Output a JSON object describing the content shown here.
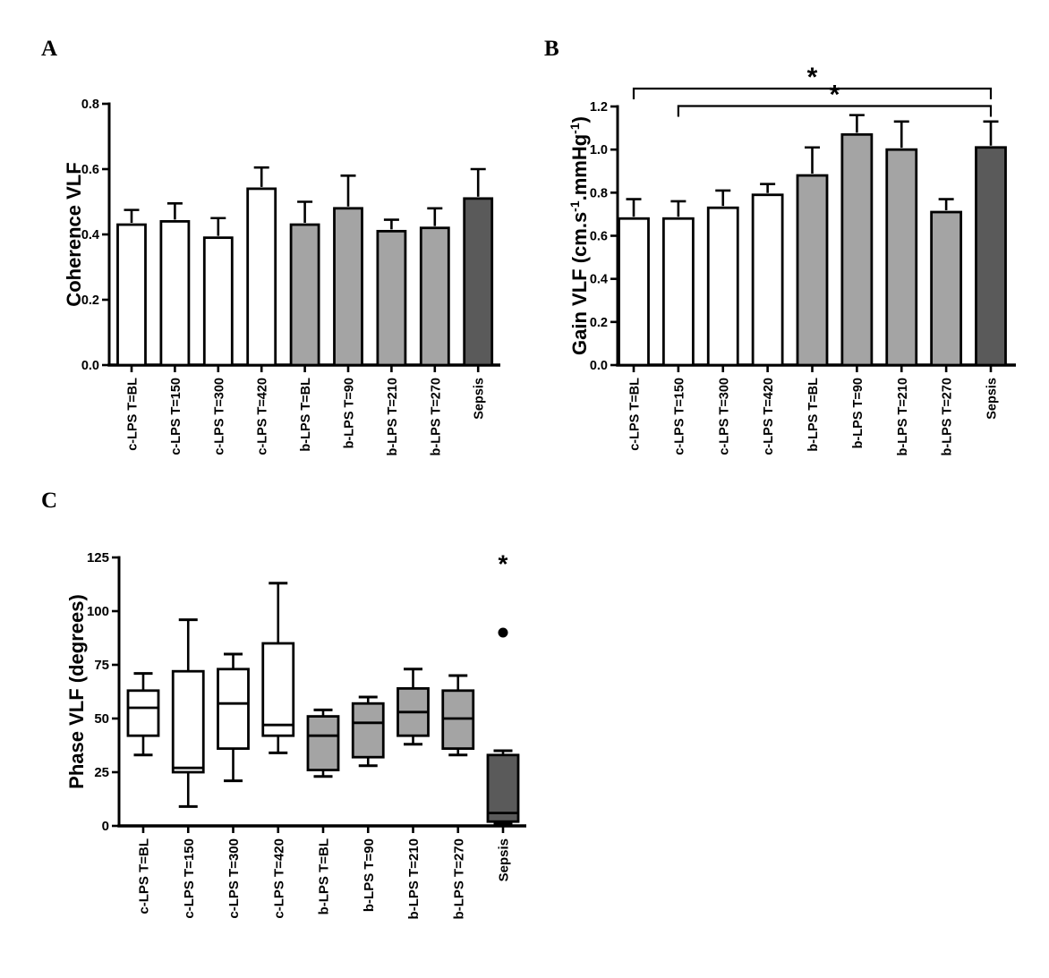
{
  "colors": {
    "c_lps_fill": "#ffffff",
    "b_lps_fill": "#a4a4a4",
    "sepsis_fill": "#5a5a5a",
    "stroke": "#000000",
    "background": "#ffffff"
  },
  "group_fills": {
    "c_lps": "#ffffff",
    "b_lps": "#a4a4a4",
    "sepsis": "#5a5a5a"
  },
  "chart_data": [
    {
      "panel_letter": "A",
      "type": "bar",
      "ylabel": "Coherence VLF",
      "ylabel_parts": [
        {
          "text": "Coherence VLF"
        }
      ],
      "ylim": [
        0,
        0.8
      ],
      "ytick_values": [
        0,
        0.2,
        0.4,
        0.6,
        0.8
      ],
      "ytick_labels": [
        "0.0",
        "0.2",
        "0.4",
        "0.6",
        "0.8"
      ],
      "categories": [
        "c-LPS T=BL",
        "c-LPS T=150",
        "c-LPS T=300",
        "c-LPS T=420",
        "b-LPS T=BL",
        "b-LPS T=90",
        "b-LPS T=210",
        "b-LPS T=270",
        "Sepsis"
      ],
      "groups": [
        "c_lps",
        "c_lps",
        "c_lps",
        "c_lps",
        "b_lps",
        "b_lps",
        "b_lps",
        "b_lps",
        "sepsis"
      ],
      "values": [
        0.43,
        0.44,
        0.39,
        0.54,
        0.43,
        0.48,
        0.41,
        0.42,
        0.51
      ],
      "errors_up": [
        0.045,
        0.055,
        0.06,
        0.065,
        0.07,
        0.1,
        0.035,
        0.06,
        0.09
      ],
      "grid": false,
      "legend": false
    },
    {
      "panel_letter": "B",
      "type": "bar",
      "ylabel": "Gain VLF (cm.s-1.mmHg-1)",
      "ylabel_parts": [
        {
          "text": "Gain VLF (cm.s"
        },
        {
          "text": "-1",
          "super": true
        },
        {
          "text": ".mmHg"
        },
        {
          "text": "-1",
          "super": true
        },
        {
          "text": ")"
        }
      ],
      "ylim": [
        0,
        1.2
      ],
      "ytick_values": [
        0,
        0.2,
        0.4,
        0.6,
        0.8,
        1.0,
        1.2
      ],
      "ytick_labels": [
        "0.0",
        "0.2",
        "0.4",
        "0.6",
        "0.8",
        "1.0",
        "1.2"
      ],
      "categories": [
        "c-LPS T=BL",
        "c-LPS T=150",
        "c-LPS T=300",
        "c-LPS T=420",
        "b-LPS T=BL",
        "b-LPS T=90",
        "b-LPS T=210",
        "b-LPS T=270",
        "Sepsis"
      ],
      "groups": [
        "c_lps",
        "c_lps",
        "c_lps",
        "c_lps",
        "b_lps",
        "b_lps",
        "b_lps",
        "b_lps",
        "sepsis"
      ],
      "values": [
        0.68,
        0.68,
        0.73,
        0.79,
        0.88,
        1.07,
        1.0,
        0.71,
        1.01
      ],
      "errors_up": [
        0.09,
        0.08,
        0.08,
        0.05,
        0.13,
        0.09,
        0.13,
        0.06,
        0.12
      ],
      "significance_brackets": [
        {
          "from_category": 0,
          "to_category": 8,
          "label": "*"
        },
        {
          "from_category": 1,
          "to_category": 8,
          "label": "*"
        }
      ],
      "grid": false,
      "legend": false
    },
    {
      "panel_letter": "C",
      "type": "box",
      "ylabel": "Phase VLF (degrees)",
      "ylabel_parts": [
        {
          "text": "Phase VLF (degrees)"
        }
      ],
      "ylim": [
        0,
        125
      ],
      "ytick_values": [
        0,
        25,
        50,
        75,
        100,
        125
      ],
      "ytick_labels": [
        "0",
        "25",
        "50",
        "75",
        "100",
        "125"
      ],
      "categories": [
        "c-LPS T=BL",
        "c-LPS T=150",
        "c-LPS T=300",
        "c-LPS T=420",
        "b-LPS T=BL",
        "b-LPS T=90",
        "b-LPS T=210",
        "b-LPS T=270",
        "Sepsis"
      ],
      "groups": [
        "c_lps",
        "c_lps",
        "c_lps",
        "c_lps",
        "b_lps",
        "b_lps",
        "b_lps",
        "b_lps",
        "sepsis"
      ],
      "boxes": [
        {
          "low": 33,
          "q1": 42,
          "median": 55,
          "q3": 63,
          "high": 71
        },
        {
          "low": 9,
          "q1": 25,
          "median": 27,
          "q3": 72,
          "high": 96
        },
        {
          "low": 21,
          "q1": 36,
          "median": 57,
          "q3": 73,
          "high": 80
        },
        {
          "low": 34,
          "q1": 42,
          "median": 47,
          "q3": 85,
          "high": 113
        },
        {
          "low": 23,
          "q1": 26,
          "median": 42,
          "q3": 51,
          "high": 54
        },
        {
          "low": 28,
          "q1": 32,
          "median": 48,
          "q3": 57,
          "high": 60
        },
        {
          "low": 38,
          "q1": 42,
          "median": 53,
          "q3": 64,
          "high": 73
        },
        {
          "low": 33,
          "q1": 36,
          "median": 50,
          "q3": 63,
          "high": 70
        },
        {
          "low": 1,
          "q1": 2,
          "median": 6,
          "q3": 33,
          "high": 35
        }
      ],
      "outlier_points": [
        {
          "category_index": 8,
          "value": 90,
          "marker": "dot"
        }
      ],
      "annotations": [
        {
          "category_index": 8,
          "value": 124,
          "text": "*"
        }
      ],
      "grid": false,
      "legend": false
    }
  ]
}
